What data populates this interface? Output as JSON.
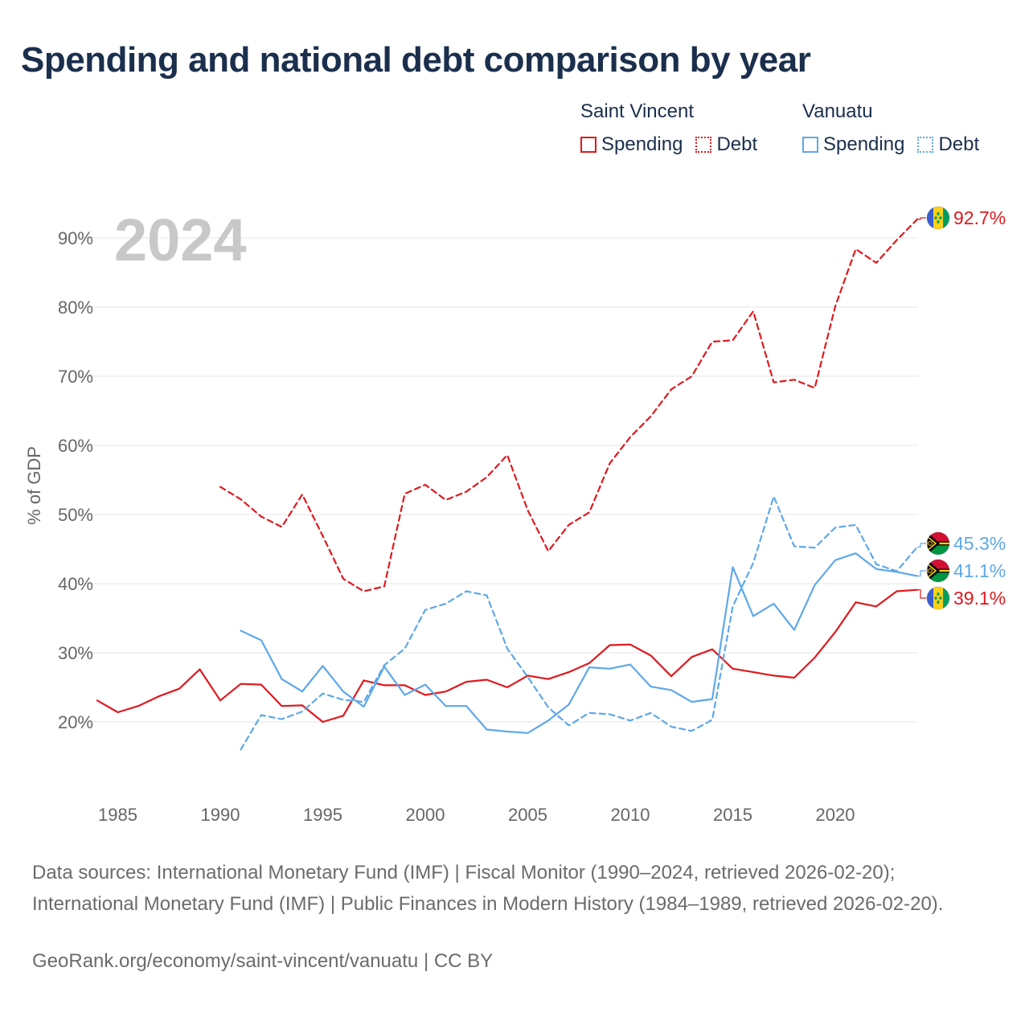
{
  "title": "Spending and national debt comparison by year",
  "legend": {
    "groups": [
      {
        "name": "Saint Vincent",
        "items": [
          "Spending",
          "Debt"
        ]
      },
      {
        "name": "Vanuatu",
        "items": [
          "Spending",
          "Debt"
        ]
      }
    ]
  },
  "year_watermark": "2024",
  "sources": "Data sources: International Monetary Fund (IMF) | Fiscal Monitor (1990–2024, retrieved 2026-02-20); International Monetary Fund (IMF) | Public Finances in Modern History (1984–1989, retrieved 2026-02-20).",
  "credit": "GeoRank.org/economy/saint-vincent/vanuatu | CC BY",
  "colors": {
    "saint_vincent": "#e0191e",
    "vanuatu": "#5ea8e8",
    "title": "#1b2f4d",
    "grid": "#e6e6e6",
    "axis_text": "#666666"
  },
  "chart_data": {
    "type": "line",
    "title": "Spending and national debt comparison by year",
    "xlabel": "",
    "ylabel": "% of GDP",
    "xlim": [
      1984,
      2024
    ],
    "ylim": [
      10,
      95
    ],
    "xticks": [
      1985,
      1990,
      1995,
      2000,
      2005,
      2010,
      2015,
      2020
    ],
    "yticks": [
      20,
      30,
      40,
      50,
      60,
      70,
      80,
      90
    ],
    "ytick_labels": [
      "20%",
      "30%",
      "40%",
      "50%",
      "60%",
      "70%",
      "80%",
      "90%"
    ],
    "grid": true,
    "series": [
      {
        "name": "Saint Vincent Debt",
        "country": "Saint Vincent",
        "kind": "Debt",
        "style": "dashed",
        "color": "#e0191e",
        "end_label": "92.7%",
        "x": [
          1990,
          1991,
          1992,
          1993,
          1994,
          1995,
          1996,
          1997,
          1998,
          1999,
          2000,
          2001,
          2002,
          2003,
          2004,
          2005,
          2006,
          2007,
          2008,
          2009,
          2010,
          2011,
          2012,
          2013,
          2014,
          2015,
          2016,
          2017,
          2018,
          2019,
          2020,
          2021,
          2022,
          2023,
          2024
        ],
        "y": [
          54,
          52.2,
          49.7,
          48.2,
          52.9,
          46.9,
          40.7,
          38.9,
          39.6,
          53,
          54.3,
          52.1,
          53.3,
          55.4,
          58.6,
          50.6,
          44.7,
          48.5,
          50.3,
          57.4,
          61.2,
          64.2,
          68.1,
          70,
          75,
          75.2,
          79.4,
          69.1,
          69.5,
          68.3,
          80.1,
          88.4,
          86.4,
          89.7,
          92.7
        ]
      },
      {
        "name": "Saint Vincent Spending",
        "country": "Saint Vincent",
        "kind": "Spending",
        "style": "solid",
        "color": "#e0191e",
        "end_label": "39.1%",
        "x": [
          1984,
          1985,
          1986,
          1987,
          1988,
          1989,
          1990,
          1991,
          1992,
          1993,
          1994,
          1995,
          1996,
          1997,
          1998,
          1999,
          2000,
          2001,
          2002,
          2003,
          2004,
          2005,
          2006,
          2007,
          2008,
          2009,
          2010,
          2011,
          2012,
          2013,
          2014,
          2015,
          2016,
          2017,
          2018,
          2019,
          2020,
          2021,
          2022,
          2023,
          2024
        ],
        "y": [
          23.1,
          21.4,
          22.3,
          23.7,
          24.8,
          27.6,
          23.1,
          25.5,
          25.4,
          22.3,
          22.4,
          20,
          20.9,
          26,
          25.3,
          25.3,
          23.9,
          24.4,
          25.8,
          26.1,
          25,
          26.7,
          26.2,
          27.2,
          28.5,
          31.1,
          31.2,
          29.6,
          26.6,
          29.4,
          30.5,
          27.7,
          27.2,
          26.7,
          26.4,
          29.3,
          33,
          37.3,
          36.7,
          38.9,
          39.1
        ]
      },
      {
        "name": "Vanuatu Debt",
        "country": "Vanuatu",
        "kind": "Debt",
        "style": "dashed",
        "color": "#5ea8e8",
        "end_label": "45.3%",
        "x": [
          1991,
          1992,
          1993,
          1994,
          1995,
          1996,
          1997,
          1998,
          1999,
          2000,
          2001,
          2002,
          2003,
          2004,
          2005,
          2006,
          2007,
          2008,
          2009,
          2010,
          2011,
          2012,
          2013,
          2014,
          2015,
          2016,
          2017,
          2018,
          2019,
          2020,
          2021,
          2022,
          2023,
          2024
        ],
        "y": [
          16,
          21,
          20.4,
          21.5,
          24.1,
          23.2,
          22.9,
          28.2,
          30.6,
          36.2,
          37.1,
          38.9,
          38.3,
          30.6,
          26.5,
          22.1,
          19.5,
          21.3,
          21.1,
          20.2,
          21.3,
          19.3,
          18.7,
          20.3,
          36.7,
          43,
          52.6,
          45.4,
          45.2,
          48.1,
          48.5,
          42.8,
          41.8,
          45.3
        ]
      },
      {
        "name": "Vanuatu Spending",
        "country": "Vanuatu",
        "kind": "Spending",
        "style": "solid",
        "color": "#5ea8e8",
        "end_label": "41.1%",
        "x": [
          1991,
          1992,
          1993,
          1994,
          1995,
          1996,
          1997,
          1998,
          1999,
          2000,
          2001,
          2002,
          2003,
          2004,
          2005,
          2006,
          2007,
          2008,
          2009,
          2010,
          2011,
          2012,
          2013,
          2014,
          2015,
          2016,
          2017,
          2018,
          2019,
          2020,
          2021,
          2022,
          2023,
          2024
        ],
        "y": [
          33.2,
          31.8,
          26.2,
          24.4,
          28.1,
          24.4,
          22.2,
          28,
          23.9,
          25.4,
          22.3,
          22.3,
          18.9,
          18.6,
          18.4,
          20.2,
          22.5,
          27.9,
          27.7,
          28.3,
          25.1,
          24.6,
          22.9,
          23.3,
          42.4,
          35.3,
          37.1,
          33.3,
          39.8,
          43.4,
          44.4,
          42.1,
          41.7,
          41.1
        ]
      }
    ]
  }
}
